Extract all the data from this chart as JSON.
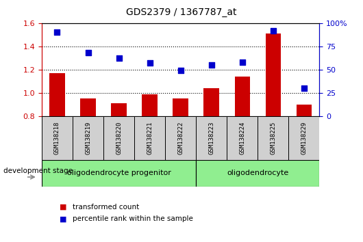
{
  "title": "GDS2379 / 1367787_at",
  "categories": [
    "GSM138218",
    "GSM138219",
    "GSM138220",
    "GSM138221",
    "GSM138222",
    "GSM138223",
    "GSM138224",
    "GSM138225",
    "GSM138229"
  ],
  "bar_values": [
    1.17,
    0.95,
    0.91,
    0.99,
    0.95,
    1.04,
    1.14,
    1.51,
    0.9
  ],
  "scatter_values": [
    90,
    68,
    62,
    57,
    49,
    55,
    58,
    92,
    30
  ],
  "ylim_left": [
    0.8,
    1.6
  ],
  "ylim_right": [
    0,
    100
  ],
  "yticks_left": [
    0.8,
    1.0,
    1.2,
    1.4,
    1.6
  ],
  "yticks_right": [
    0,
    25,
    50,
    75,
    100
  ],
  "hlines": [
    1.0,
    1.2,
    1.4
  ],
  "bar_color": "#cc0000",
  "scatter_color": "#0000cc",
  "group1_label": "oligodendrocyte progenitor",
  "group2_label": "oligodendrocyte",
  "group1_color": "#90ee90",
  "group2_color": "#90ee90",
  "group1_count": 5,
  "group2_count": 4,
  "legend_bar": "transformed count",
  "legend_scatter": "percentile rank within the sample",
  "dev_stage_label": "development stage",
  "tick_color_left": "#cc0000",
  "tick_color_right": "#0000cc",
  "xtick_bg_color": "#d0d0d0",
  "bar_width": 0.5,
  "scatter_marker_size": 30
}
